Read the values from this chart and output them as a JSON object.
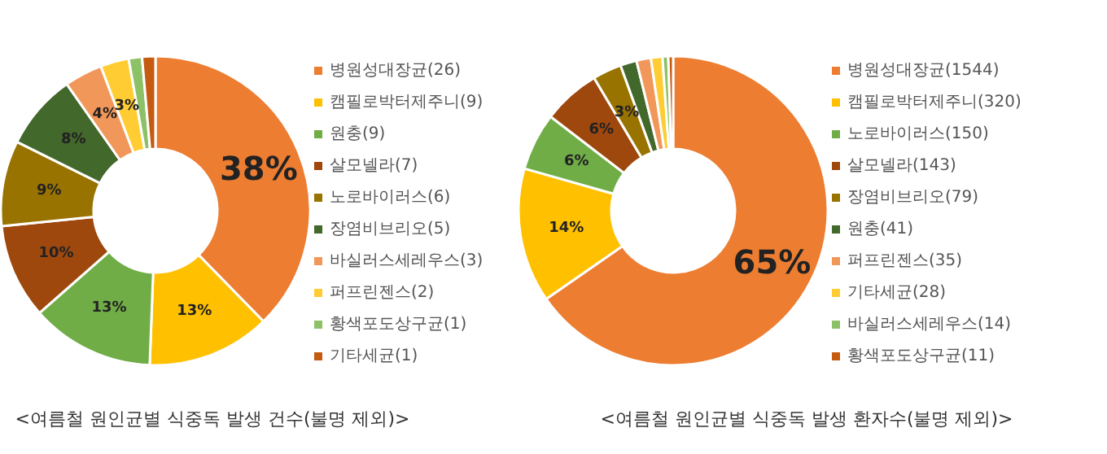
{
  "chart_data": [
    {
      "type": "donut",
      "title": "<여름철 원인균별 식중독 발생 건수(불명 제외)>",
      "legend": "right",
      "categories": [
        "병원성대장균(26)",
        "캠필로박터제주니(9)",
        "원충(9)",
        "살모넬라(7)",
        "노로바이러스(6)",
        "장염비브리오(5)",
        "바실러스세레우스(3)",
        "퍼프린젠스(2)",
        "황색포도상구균(1)",
        "기타세균(1)"
      ],
      "values": [
        38,
        13,
        13,
        10,
        9,
        8,
        4,
        3,
        1.4,
        1.4
      ],
      "colors": [
        "#ed7d31",
        "#ffc000",
        "#70ad47",
        "#9e480e",
        "#997300",
        "#43682b",
        "#f1975a",
        "#ffcd33",
        "#8cc168",
        "#c55a11"
      ],
      "value_labels": [
        "38%",
        "13%",
        "13%",
        "10%",
        "9%",
        "8%",
        "4%",
        "3%",
        null,
        null
      ]
    },
    {
      "type": "donut",
      "title": "<여름철 원인균별 식중독 발생 환자수(불명 제외)>",
      "legend": "right",
      "categories": [
        "병원성대장균(1544)",
        "캠필로박터제주니(320)",
        "노로바이러스(150)",
        "살모넬라(143)",
        "장염비브리오(79)",
        "원충(41)",
        "퍼프린젠스(35)",
        "기타세균(28)",
        "바실러스세레우스(14)",
        "황색포도상구균(11)"
      ],
      "values": [
        65,
        14,
        6,
        6,
        3,
        1.7,
        1.5,
        1.2,
        0.6,
        0.5
      ],
      "colors": [
        "#ed7d31",
        "#ffc000",
        "#70ad47",
        "#9e480e",
        "#997300",
        "#43682b",
        "#f1975a",
        "#ffcd33",
        "#8cc168",
        "#c55a11"
      ],
      "value_labels": [
        "65%",
        "14%",
        "6%",
        "6%",
        "3%",
        null,
        null,
        null,
        null,
        null
      ]
    }
  ]
}
